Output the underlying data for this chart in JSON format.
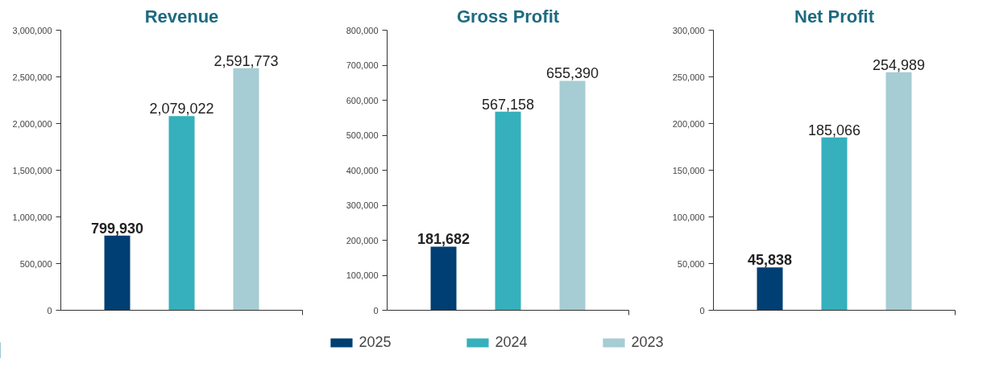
{
  "chart_data": [
    {
      "type": "bar",
      "title": "Revenue",
      "categories": [
        null
      ],
      "tick_labels": "y",
      "grid": false,
      "ylim": [
        0,
        3000000
      ],
      "yticks": [
        {
          "value": 0,
          "label": "0"
        },
        {
          "value": 500000,
          "label": "500,000"
        },
        {
          "value": 1000000,
          "label": "1,000,000"
        },
        {
          "value": 1500000,
          "label": "1,500,000"
        },
        {
          "value": 2000000,
          "label": "2,000,000"
        },
        {
          "value": 2500000,
          "label": "2,500,000"
        },
        {
          "value": 3000000,
          "label": "3,000,000"
        }
      ],
      "series": [
        {
          "color": "#003f73",
          "values": [
            799930
          ],
          "value_labels": [
            "799,930"
          ]
        },
        {
          "color": "#35b0bc",
          "values": [
            2079022
          ],
          "value_labels": [
            "2,079,022"
          ]
        },
        {
          "color": "#a5cdd3",
          "values": [
            2591773
          ],
          "value_labels": [
            "2,591,773"
          ]
        }
      ]
    },
    {
      "type": "bar",
      "title": "Gross Profit",
      "categories": [
        null
      ],
      "tick_labels": "y",
      "grid": false,
      "legend": "bottom",
      "ylim": [
        0,
        800000
      ],
      "yticks": [
        {
          "value": 0,
          "label": "0"
        },
        {
          "value": 100000,
          "label": "100,000"
        },
        {
          "value": 200000,
          "label": "200,000"
        },
        {
          "value": 300000,
          "label": "300,000"
        },
        {
          "value": 400000,
          "label": "400,000"
        },
        {
          "value": 500000,
          "label": "500,000"
        },
        {
          "value": 600000,
          "label": "600,000"
        },
        {
          "value": 700000,
          "label": "700,000"
        },
        {
          "value": 800000,
          "label": "800,000"
        }
      ],
      "series": [
        {
          "name": "2025",
          "color": "#003f73",
          "values": [
            181682
          ],
          "value_labels": [
            "181,682"
          ]
        },
        {
          "name": "2024",
          "color": "#35b0bc",
          "values": [
            567158
          ],
          "value_labels": [
            "567,158"
          ]
        },
        {
          "name": "2023",
          "color": "#a5cdd3",
          "values": [
            655390
          ],
          "value_labels": [
            "655,390"
          ]
        }
      ]
    },
    {
      "type": "bar",
      "title": "Net Profit",
      "categories": [
        null
      ],
      "tick_labels": "y",
      "grid": false,
      "ylim": [
        0,
        300000
      ],
      "yticks": [
        {
          "value": 0,
          "label": "0"
        },
        {
          "value": 50000,
          "label": "50,000"
        },
        {
          "value": 100000,
          "label": "100,000"
        },
        {
          "value": 150000,
          "label": "150,000"
        },
        {
          "value": 200000,
          "label": "200,000"
        },
        {
          "value": 250000,
          "label": "250,000"
        },
        {
          "value": 300000,
          "label": "300,000"
        }
      ],
      "series": [
        {
          "color": "#003f73",
          "values": [
            45838
          ],
          "value_labels": [
            "45,838"
          ]
        },
        {
          "color": "#35b0bc",
          "values": [
            185066
          ],
          "value_labels": [
            "185,066"
          ]
        },
        {
          "color": "#a5cdd3",
          "values": [
            254989
          ],
          "value_labels": [
            "254,989"
          ]
        }
      ]
    }
  ]
}
